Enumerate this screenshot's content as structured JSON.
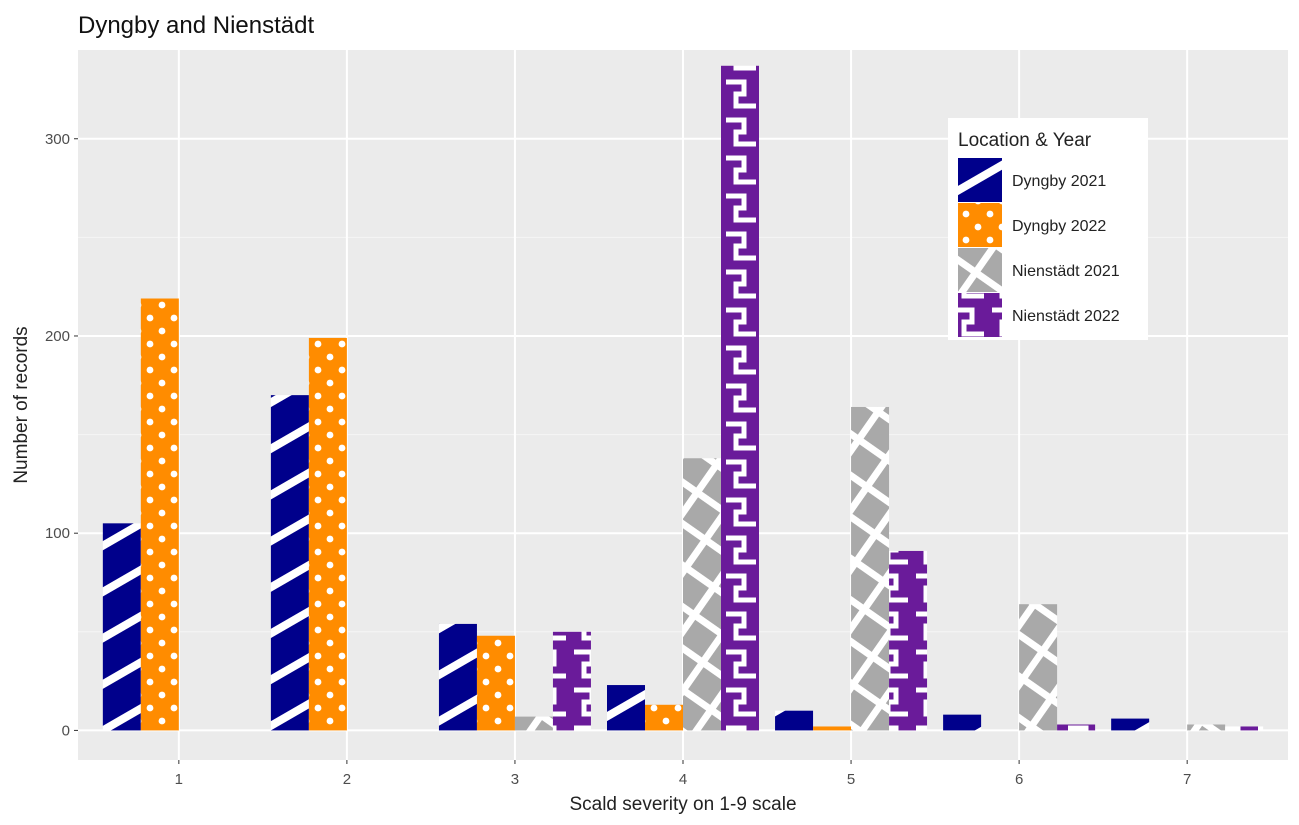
{
  "chart_data": {
    "type": "bar",
    "title": "Dyngby and Nienstädt",
    "xlabel": "Scald severity on 1-9 scale",
    "ylabel": "Number of records",
    "categories": [
      "1",
      "2",
      "3",
      "4",
      "5",
      "6",
      "7"
    ],
    "ylim": [
      -15,
      345
    ],
    "yticks": [
      0,
      100,
      200,
      300
    ],
    "grid": true,
    "legend": {
      "title": "Location & Year",
      "position": "top-right"
    },
    "series": [
      {
        "name": "Dyngby 2021",
        "color": "#00008B",
        "pattern": "diagonal-stripes",
        "values": [
          105,
          170,
          54,
          23,
          10,
          8,
          6
        ]
      },
      {
        "name": "Dyngby 2022",
        "color": "#FF8C00",
        "pattern": "dots",
        "values": [
          219,
          199,
          48,
          13,
          2,
          null,
          null
        ]
      },
      {
        "name": "Nienstädt 2021",
        "color": "#A9A9A9",
        "pattern": "crosshatch",
        "values": [
          null,
          null,
          7,
          138,
          164,
          64,
          3
        ]
      },
      {
        "name": "Nienstädt 2022",
        "color": "#6A1B9A",
        "pattern": "zigzag",
        "values": [
          null,
          null,
          50,
          337,
          91,
          3,
          2
        ]
      }
    ]
  }
}
